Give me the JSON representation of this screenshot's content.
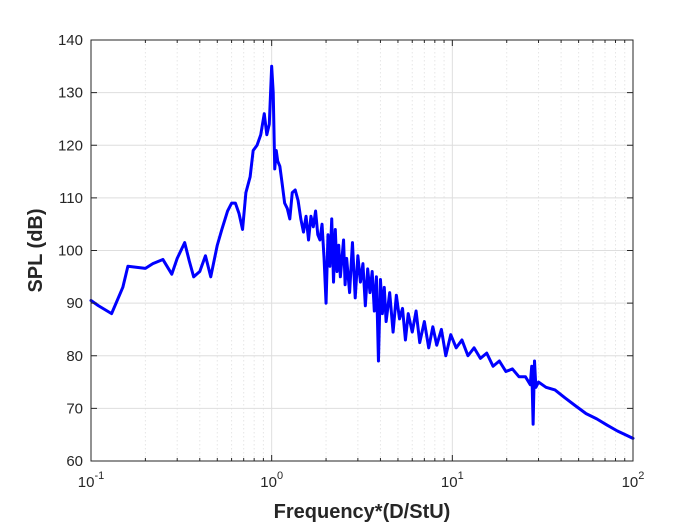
{
  "chart_data": {
    "type": "line",
    "title": "",
    "xlabel": "Frequency*(D/StU)",
    "ylabel": "SPL (dB)",
    "x_scale": "log",
    "xlim": [
      0.1,
      100
    ],
    "ylim": [
      60,
      140
    ],
    "grid": true,
    "legend": "none",
    "x_ticks": [
      {
        "base": "10",
        "exp": "-1",
        "value": 0.1
      },
      {
        "base": "10",
        "exp": "0",
        "value": 1
      },
      {
        "base": "10",
        "exp": "1",
        "value": 10
      },
      {
        "base": "10",
        "exp": "2",
        "value": 100
      }
    ],
    "y_ticks": [
      "60",
      "70",
      "80",
      "90",
      "100",
      "110",
      "120",
      "130",
      "140"
    ],
    "series": [
      {
        "color": "#0000ff",
        "x": [
          0.1,
          0.11,
          0.13,
          0.15,
          0.16,
          0.18,
          0.2,
          0.22,
          0.25,
          0.28,
          0.3,
          0.33,
          0.35,
          0.37,
          0.4,
          0.43,
          0.46,
          0.5,
          0.53,
          0.57,
          0.6,
          0.63,
          0.66,
          0.69,
          0.72,
          0.76,
          0.79,
          0.83,
          0.87,
          0.91,
          0.94,
          0.97,
          1.0,
          1.02,
          1.04,
          1.06,
          1.08,
          1.11,
          1.14,
          1.18,
          1.22,
          1.26,
          1.3,
          1.35,
          1.4,
          1.45,
          1.5,
          1.55,
          1.6,
          1.65,
          1.7,
          1.75,
          1.8,
          1.85,
          1.9,
          1.95,
          2.0,
          2.05,
          2.1,
          2.15,
          2.2,
          2.25,
          2.3,
          2.35,
          2.4,
          2.5,
          2.55,
          2.6,
          2.7,
          2.8,
          2.9,
          3.0,
          3.1,
          3.2,
          3.3,
          3.4,
          3.5,
          3.6,
          3.7,
          3.8,
          3.9,
          4.0,
          4.1,
          4.2,
          4.3,
          4.5,
          4.7,
          4.9,
          5.1,
          5.3,
          5.5,
          5.7,
          6.0,
          6.3,
          6.6,
          7.0,
          7.4,
          7.8,
          8.2,
          8.7,
          9.2,
          9.8,
          10.5,
          11.3,
          12.2,
          13.2,
          14.3,
          15.5,
          16.8,
          18.2,
          19.8,
          21.5,
          23.4,
          25.4,
          27.0,
          27.5,
          28.0,
          28.5,
          29.0,
          30.0,
          33.0,
          37.0,
          42.0,
          48.0,
          55.0,
          63.0,
          72.0,
          82.0,
          92.0,
          100.0
        ],
        "y": [
          90.5,
          89.5,
          88.0,
          93.0,
          97.0,
          96.8,
          96.6,
          97.5,
          98.3,
          95.5,
          98.5,
          101.5,
          98.0,
          95.0,
          96.0,
          99.0,
          95.0,
          101.0,
          104.0,
          107.5,
          109.0,
          109.0,
          107.0,
          104.0,
          111.0,
          114.0,
          119.0,
          120.0,
          122.0,
          126.0,
          122.0,
          124.0,
          135.0,
          130.0,
          115.5,
          119.0,
          117.0,
          116.0,
          113.0,
          109.0,
          108.0,
          106.0,
          111.0,
          111.5,
          109.5,
          106.0,
          103.5,
          106.5,
          102.0,
          106.5,
          104.5,
          107.5,
          103.0,
          102.0,
          105.0,
          98.5,
          90.0,
          103.0,
          97.0,
          106.0,
          94.0,
          104.0,
          96.0,
          101.0,
          95.0,
          102.0,
          93.5,
          98.5,
          92.0,
          101.5,
          91.0,
          99.0,
          94.0,
          97.5,
          89.5,
          96.5,
          92.0,
          96.0,
          88.5,
          95.0,
          79.0,
          94.5,
          88.0,
          93.0,
          86.5,
          92.0,
          84.5,
          91.5,
          87.0,
          89.0,
          83.0,
          88.0,
          84.5,
          88.5,
          82.5,
          86.5,
          81.5,
          85.5,
          82.0,
          85.0,
          80.0,
          84.0,
          81.5,
          83.0,
          80.0,
          81.5,
          79.5,
          80.5,
          78.0,
          79.0,
          77.0,
          77.5,
          76.0,
          76.0,
          74.5,
          78.0,
          67.0,
          79.0,
          74.0,
          75.0,
          74.0,
          73.5,
          72.0,
          70.5,
          69.0,
          68.0,
          66.8,
          65.7,
          64.9,
          64.3
        ]
      }
    ]
  }
}
